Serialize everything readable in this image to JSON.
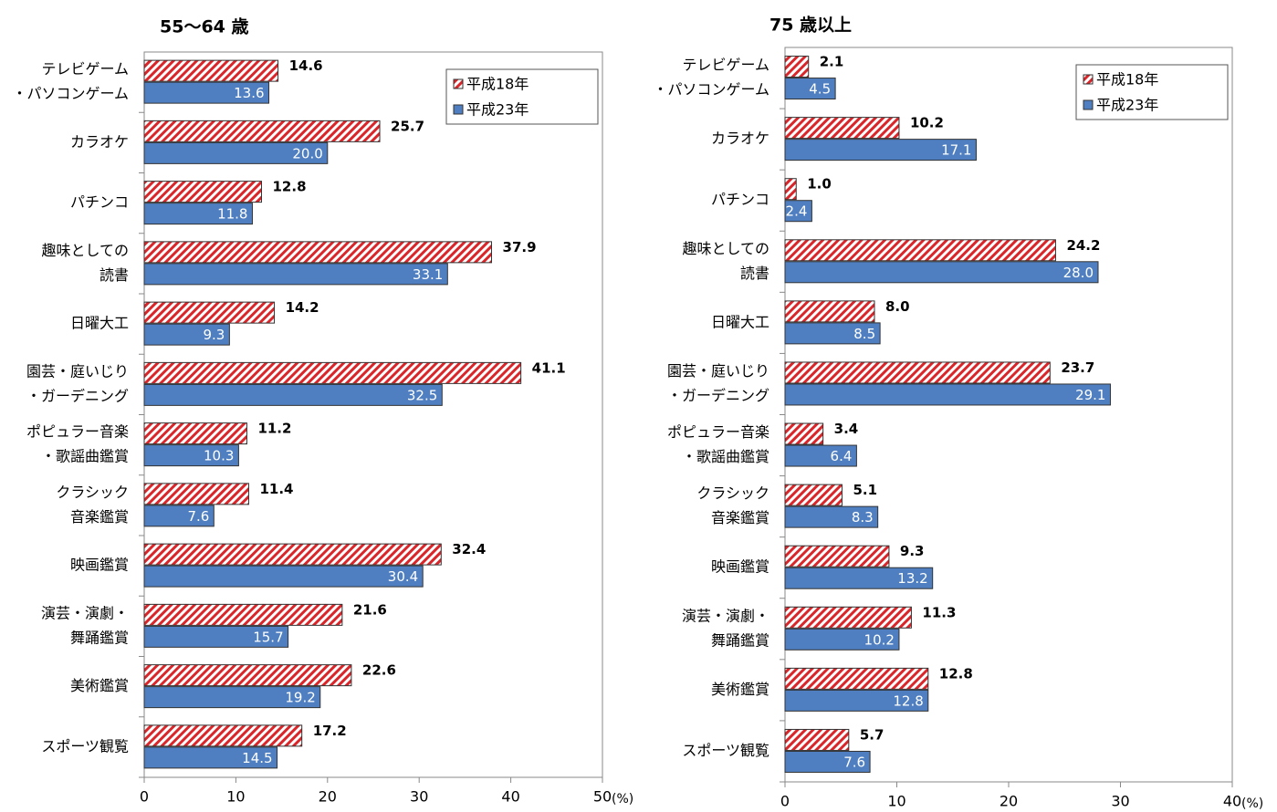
{
  "chart_data": [
    {
      "type": "bar",
      "orientation": "horizontal",
      "title": "55～64 歳",
      "categories": [
        [
          "テレビゲーム",
          "・パソコンゲーム"
        ],
        [
          "カラオケ"
        ],
        [
          "パチンコ"
        ],
        [
          "趣味としての",
          "読書"
        ],
        [
          "日曜大工"
        ],
        [
          "園芸・庭いじり",
          "・ガーデニング"
        ],
        [
          "ポピュラー音楽",
          "・歌謡曲鑑賞"
        ],
        [
          "クラシック",
          "音楽鑑賞"
        ],
        [
          "映画鑑賞"
        ],
        [
          "演芸・演劇・",
          "舞踊鑑賞"
        ],
        [
          "美術鑑賞"
        ],
        [
          "スポーツ観覧"
        ]
      ],
      "series": [
        {
          "name": "平成18年",
          "color": "#d9262a",
          "hatch": true,
          "values": [
            14.6,
            25.7,
            12.8,
            37.9,
            14.2,
            41.1,
            11.2,
            11.4,
            32.4,
            21.6,
            22.6,
            17.2
          ],
          "value_labels": [
            "14.6",
            "25.7",
            "12.8",
            "37.9",
            "14.2",
            "41.1",
            "11.2",
            "11.4",
            "32.4",
            "21.6",
            "22.6",
            "17.2"
          ]
        },
        {
          "name": "平成23年",
          "color": "#4f7fc0",
          "hatch": false,
          "values": [
            13.6,
            20.0,
            11.8,
            33.1,
            9.3,
            32.5,
            10.3,
            7.6,
            30.4,
            15.7,
            19.2,
            14.5
          ],
          "value_labels": [
            "13.6",
            "20.0",
            "11.8",
            "33.1",
            "9.3",
            "32.5",
            "10.3",
            "7.6",
            "30.4",
            "15.7",
            "19.2",
            "14.5"
          ]
        }
      ],
      "xlim": [
        0,
        50
      ],
      "xticks": [
        0,
        10,
        20,
        30,
        40,
        50
      ],
      "x_unit": "(%)",
      "legend": "upper right"
    },
    {
      "type": "bar",
      "orientation": "horizontal",
      "title": "75 歳以上",
      "categories": [
        [
          "テレビゲーム",
          "・パソコンゲーム"
        ],
        [
          "カラオケ"
        ],
        [
          "パチンコ"
        ],
        [
          "趣味としての",
          "読書"
        ],
        [
          "日曜大工"
        ],
        [
          "園芸・庭いじり",
          "・ガーデニング"
        ],
        [
          "ポピュラー音楽",
          "・歌謡曲鑑賞"
        ],
        [
          "クラシック",
          "音楽鑑賞"
        ],
        [
          "映画鑑賞"
        ],
        [
          "演芸・演劇・",
          "舞踊鑑賞"
        ],
        [
          "美術鑑賞"
        ],
        [
          "スポーツ観覧"
        ]
      ],
      "series": [
        {
          "name": "平成18年",
          "color": "#d9262a",
          "hatch": true,
          "values": [
            2.1,
            10.2,
            1.0,
            24.2,
            8.0,
            23.7,
            3.4,
            5.1,
            9.3,
            11.3,
            12.8,
            5.7
          ],
          "value_labels": [
            "2.1",
            "10.2",
            "1.0",
            "24.2",
            "8.0",
            "23.7",
            "3.4",
            "5.1",
            "9.3",
            "11.3",
            "12.8",
            "5.7"
          ]
        },
        {
          "name": "平成23年",
          "color": "#4f7fc0",
          "hatch": false,
          "values": [
            4.5,
            17.1,
            2.4,
            28.0,
            8.5,
            29.1,
            6.4,
            8.3,
            13.2,
            10.2,
            12.8,
            7.6
          ],
          "value_labels": [
            "4.5",
            "17.1",
            "2.4",
            "28.0",
            "8.5",
            "29.1",
            "6.4",
            "8.3",
            "13.2",
            "10.2",
            "12.8",
            "7.6"
          ]
        }
      ],
      "xlim": [
        0,
        40
      ],
      "xticks": [
        0,
        10,
        20,
        30,
        40
      ],
      "x_unit": "(%)",
      "legend": "upper right"
    }
  ]
}
